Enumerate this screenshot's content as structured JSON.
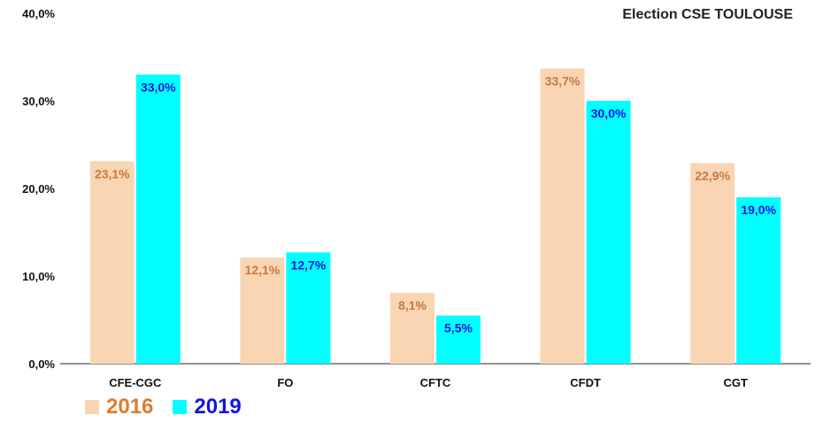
{
  "chart_data": {
    "type": "bar",
    "title": "Election CSE TOULOUSE",
    "categories": [
      "CFE-CGC",
      "FO",
      "CFTC",
      "CFDT",
      "CGT"
    ],
    "series": [
      {
        "name": "2016",
        "values": [
          23.1,
          12.1,
          8.1,
          33.7,
          22.9
        ],
        "labels": [
          "23,1%",
          "12,1%",
          "8,1%",
          "33,7%",
          "22,9%"
        ],
        "color": "#FAD5B4",
        "label_color": "#C8793A",
        "legend_color": "#E07B2E"
      },
      {
        "name": "2019",
        "values": [
          33.0,
          12.7,
          5.5,
          30.0,
          19.0
        ],
        "labels": [
          "33,0%",
          "12,7%",
          "5,5%",
          "30,0%",
          "19,0%"
        ],
        "color": "#00FFFF",
        "label_color": "#1515E0",
        "legend_color": "#1515E0"
      }
    ],
    "ylim": [
      0,
      40
    ],
    "yticks": [
      "0,0%",
      "10,0%",
      "20,0%",
      "30,0%",
      "40,0%"
    ],
    "xlabel": "",
    "ylabel": "",
    "grid": false,
    "legend_position": "bottom-left"
  }
}
